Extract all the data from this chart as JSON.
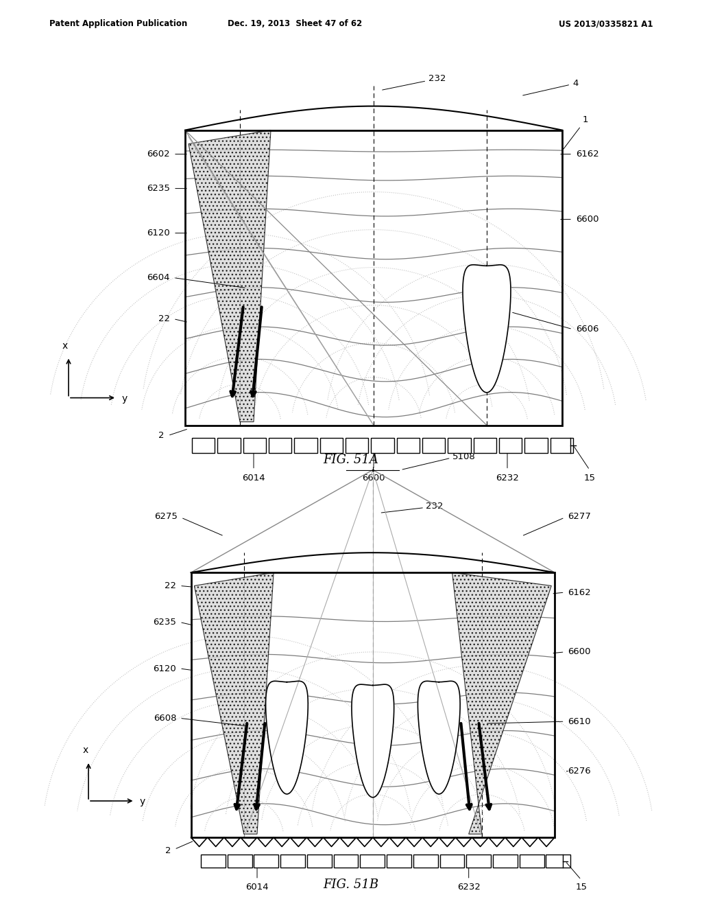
{
  "header_left": "Patent Application Publication",
  "header_mid": "Dec. 19, 2013  Sheet 47 of 62",
  "header_right": "US 2013/0335821 A1",
  "fig1_caption": "FIG. 51A",
  "fig2_caption": "FIG. 51B",
  "bg_color": "#ffffff",
  "line_color": "#000000"
}
